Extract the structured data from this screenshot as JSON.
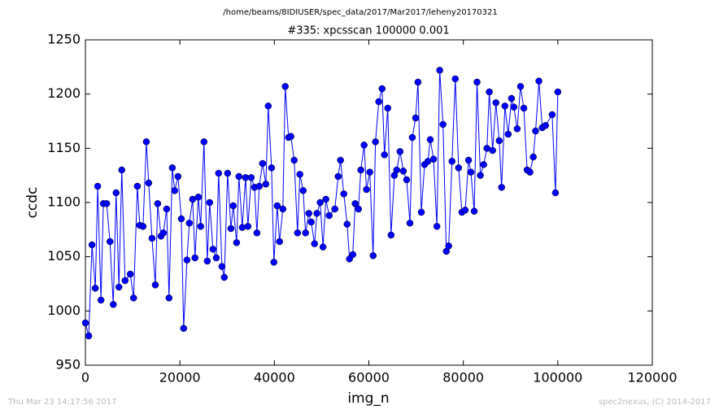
{
  "chart_data": {
    "type": "line",
    "suptitle": "/home/beams/8IDIUSER/spec_data/2017/Mar2017/leheny20170321",
    "title": "#335: xpcsscan 100000 0.001",
    "xlabel": "img_n",
    "ylabel": "ccdc",
    "footer_left": "Thu Mar 23 14:17:56 2017",
    "footer_right": "spec2nexus, (C) 2014-2017",
    "color": "#0000ff",
    "marker": "o",
    "xlim": [
      0,
      120000
    ],
    "xticks": [
      0,
      20000,
      40000,
      60000,
      80000,
      100000,
      120000
    ],
    "ylim": [
      950,
      1250
    ],
    "yticks": [
      950,
      1000,
      1050,
      1100,
      1150,
      1200,
      1250
    ],
    "x": [
      0,
      700,
      1400,
      2100,
      2600,
      3300,
      3800,
      4500,
      5200,
      5900,
      6500,
      7100,
      7700,
      8400,
      9500,
      10200,
      11000,
      11500,
      12200,
      12900,
      13400,
      14100,
      14800,
      15300,
      16000,
      16500,
      17200,
      17700,
      18400,
      18900,
      19600,
      20300,
      20800,
      21500,
      22000,
      22700,
      23200,
      23900,
      24400,
      25100,
      25800,
      26300,
      27000,
      27700,
      28200,
      28900,
      29400,
      30100,
      30800,
      31300,
      32000,
      32500,
      33200,
      33900,
      34400,
      35100,
      35800,
      36300,
      36800,
      37500,
      38200,
      38700,
      39400,
      39900,
      40600,
      41100,
      41800,
      42300,
      43000,
      43500,
      44200,
      44900,
      45400,
      46100,
      46600,
      47300,
      47800,
      48500,
      49000,
      49700,
      50300,
      50900,
      51600,
      52800,
      53500,
      54000,
      54700,
      55400,
      55900,
      56600,
      57100,
      57800,
      58300,
      59000,
      59500,
      60200,
      60900,
      61400,
      62100,
      62800,
      63300,
      64000,
      64700,
      65400,
      65900,
      66600,
      67300,
      68000,
      68700,
      69200,
      69900,
      70400,
      71100,
      71800,
      72500,
      73000,
      73700,
      74400,
      75000,
      75700,
      76400,
      76900,
      77600,
      78300,
      79000,
      79700,
      80400,
      81100,
      81600,
      82300,
      82900,
      83600,
      84300,
      85000,
      85500,
      86200,
      86900,
      87600,
      88100,
      88800,
      89500,
      90200,
      90700,
      91400,
      92100,
      92800,
      93500,
      94100,
      94800,
      95300,
      96000,
      96700,
      97400,
      98800,
      99500,
      100000
    ],
    "values": [
      989,
      977,
      1061,
      1021,
      1115,
      1010,
      1099,
      1099,
      1064,
      1006,
      1109,
      1022,
      1130,
      1028,
      1034,
      1012,
      1115,
      1079,
      1078,
      1156,
      1118,
      1067,
      1024,
      1099,
      1069,
      1072,
      1094,
      1012,
      1132,
      1111,
      1124,
      1085,
      984,
      1047,
      1081,
      1103,
      1049,
      1105,
      1078,
      1156,
      1046,
      1100,
      1057,
      1049,
      1127,
      1041,
      1031,
      1127,
      1076,
      1097,
      1063,
      1124,
      1077,
      1123,
      1078,
      1123,
      1114,
      1072,
      1115,
      1136,
      1117,
      1189,
      1132,
      1045,
      1097,
      1064,
      1094,
      1207,
      1160,
      1161,
      1139,
      1072,
      1126,
      1111,
      1072,
      1090,
      1082,
      1062,
      1090,
      1100,
      1059,
      1103,
      1088,
      1094,
      1124,
      1139,
      1108,
      1080,
      1048,
      1052,
      1099,
      1094,
      1130,
      1153,
      1112,
      1128,
      1051,
      1156,
      1193,
      1205,
      1144,
      1187,
      1070,
      1125,
      1130,
      1147,
      1129,
      1121,
      1081,
      1160,
      1178,
      1211,
      1091,
      1135,
      1138,
      1158,
      1140,
      1078,
      1222,
      1172,
      1055,
      1060,
      1138,
      1214,
      1132,
      1091,
      1093,
      1139,
      1128,
      1092,
      1211,
      1125,
      1135,
      1150,
      1202,
      1148,
      1192,
      1157,
      1114,
      1189,
      1163,
      1196,
      1188,
      1168,
      1207,
      1187,
      1130,
      1128,
      1142,
      1166,
      1212,
      1169,
      1171,
      1181,
      1109,
      1202
    ]
  }
}
